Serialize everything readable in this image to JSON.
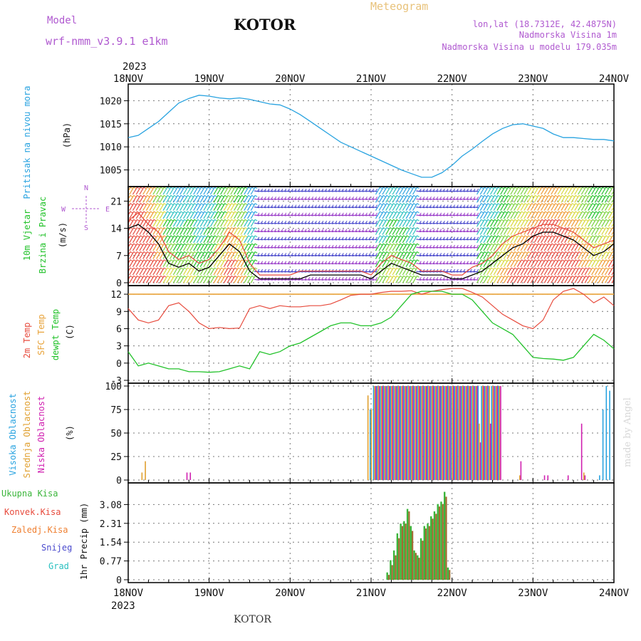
{
  "header": {
    "model_label": "Model",
    "model_name": "wrf-nmm_v3.9.1 e1km",
    "station": "KOTOR",
    "title": "Meteogram",
    "lonlat": "lon,lat (18.7312E, 42.4875N)",
    "altitude": "Nadmorska Visina 1m",
    "model_altitude": "Nadmorska Visina u modelu 179.035m"
  },
  "footer": {
    "station": "KOTOR",
    "credit": "made by Angel"
  },
  "x_axis": {
    "year": "2023",
    "ticks": [
      "18NOV",
      "19NOV",
      "20NOV",
      "21NOV",
      "22NOV",
      "23NOV",
      "24NOV"
    ],
    "range": [
      0,
      144
    ]
  },
  "colors": {
    "pressure": "#29a3e0",
    "temp_2m": "#e74a3c",
    "sfc_temp": "#e8a33a",
    "dewpoint": "#22c22a",
    "wind_purple": "#9a3ec9",
    "wind_speed": "#000000",
    "wind_gust": "#e74a3c",
    "cloud_high": "#29a3e0",
    "cloud_mid": "#e0a030",
    "cloud_low": "#d020b0",
    "precip_total": "#3ab53a",
    "precip_conv": "#e74a3c",
    "precip_strat": "#ef7f30",
    "snow": "#4a4acd",
    "graupel": "#2ac0c0",
    "label_magenta": "#b05ad0",
    "label_orange": "#e8c27a"
  },
  "chart_data": [
    {
      "type": "line",
      "panel": "pressure",
      "ylabel_main": "Pritisak na nivou mora",
      "ylabel_unit": "(hPa)",
      "ylim": [
        1002,
        1023
      ],
      "yticks": [
        "1005",
        "1010",
        "1015",
        "1020"
      ],
      "ytick_values": [
        1005,
        1010,
        1015,
        1020
      ],
      "x": [
        0,
        3,
        6,
        9,
        12,
        15,
        18,
        21,
        24,
        27,
        30,
        33,
        36,
        39,
        42,
        45,
        48,
        51,
        54,
        57,
        60,
        63,
        66,
        69,
        72,
        75,
        78,
        81,
        84,
        87,
        90,
        93,
        96,
        99,
        102,
        105,
        108,
        111,
        114,
        117,
        120,
        123,
        126,
        129,
        132,
        135,
        138,
        141,
        144
      ],
      "series": [
        {
          "values": [
            1012,
            1012.5,
            1014,
            1015.5,
            1017.5,
            1019.5,
            1020.5,
            1021.2,
            1021,
            1020.6,
            1020.4,
            1020.6,
            1020.3,
            1019.8,
            1019.3,
            1019.1,
            1018.2,
            1017,
            1015.5,
            1014,
            1012.5,
            1011,
            1010,
            1009,
            1008,
            1007,
            1006,
            1005,
            1004.2,
            1003.4,
            1003.4,
            1004.4,
            1006,
            1008,
            1009.5,
            1011.2,
            1012.8,
            1014,
            1014.8,
            1015,
            1014.5,
            1014,
            1012.8,
            1012,
            1012,
            1011.8,
            1011.6,
            1011.6,
            1011.3
          ]
        }
      ]
    },
    {
      "type": "line",
      "panel": "wind",
      "ylabel_main": "10m Vjetar",
      "ylabel_sub": "Brzina i Pravac",
      "ylabel_unit": "(m/s)",
      "compass": [
        "N",
        "E",
        "S",
        "W"
      ],
      "ylim": [
        0,
        24
      ],
      "yticks": [
        "0",
        "7",
        "14",
        "21"
      ],
      "ytick_values": [
        0,
        7,
        14,
        21
      ],
      "x": [
        0,
        3,
        6,
        9,
        12,
        15,
        18,
        21,
        24,
        27,
        30,
        33,
        36,
        39,
        42,
        45,
        48,
        51,
        54,
        57,
        60,
        63,
        66,
        69,
        72,
        75,
        78,
        81,
        84,
        87,
        90,
        93,
        96,
        99,
        102,
        105,
        108,
        111,
        114,
        117,
        120,
        123,
        126,
        129,
        132,
        135,
        138,
        141,
        144
      ],
      "series": [
        {
          "name": "speed",
          "values": [
            14,
            15,
            13,
            10,
            5,
            4,
            5,
            3,
            4,
            7,
            10,
            8,
            3,
            1,
            1,
            1,
            1,
            1,
            2,
            2,
            2,
            2,
            2,
            2,
            1,
            3,
            5,
            4,
            3,
            2,
            2,
            2,
            1,
            1,
            2,
            3,
            5,
            7,
            9,
            10,
            12,
            13,
            13,
            12,
            11,
            9,
            7,
            8,
            10
          ]
        },
        {
          "name": "gust",
          "values": [
            16,
            18,
            15,
            13,
            8,
            6,
            7,
            5,
            6,
            9,
            13,
            11,
            5,
            2,
            2,
            2,
            2,
            3,
            3,
            3,
            3,
            3,
            3,
            3,
            2,
            5,
            7,
            6,
            5,
            3,
            3,
            3,
            2,
            2,
            4,
            5,
            7,
            10,
            12,
            13,
            14,
            15,
            15,
            14,
            13,
            11,
            9,
            10,
            11
          ]
        }
      ]
    },
    {
      "type": "line",
      "panel": "temperature",
      "ylabel_lines": [
        "2m Temp",
        "SFC Temp",
        "dewpt Temp"
      ],
      "ylabel_unit": "(C)",
      "ylim": [
        -3,
        13
      ],
      "yticks": [
        "-3",
        "0",
        "3",
        "6",
        "9",
        "12"
      ],
      "ytick_values": [
        -3,
        0,
        3,
        6,
        9,
        12
      ],
      "x": [
        0,
        3,
        6,
        9,
        12,
        15,
        18,
        21,
        24,
        27,
        30,
        33,
        36,
        39,
        42,
        45,
        48,
        51,
        54,
        57,
        60,
        63,
        66,
        69,
        72,
        75,
        78,
        81,
        84,
        87,
        90,
        93,
        96,
        99,
        102,
        105,
        108,
        111,
        114,
        117,
        120,
        123,
        126,
        129,
        132,
        135,
        138,
        141,
        144
      ],
      "series": [
        {
          "name": "2m Temp",
          "values": [
            9.5,
            7.5,
            7,
            7.5,
            10,
            10.5,
            9,
            7,
            6,
            6.2,
            6,
            6.1,
            9.5,
            10,
            9.5,
            10,
            9.8,
            9.8,
            10,
            10,
            10.3,
            11,
            11.8,
            12,
            12,
            12.3,
            12.5,
            12.5,
            12.6,
            12,
            12.5,
            12.8,
            13,
            13,
            12.3,
            11.5,
            10,
            8.5,
            7.5,
            6.5,
            6,
            7.5,
            11,
            12.5,
            13,
            12,
            10.5,
            11.5,
            10
          ]
        },
        {
          "name": "SFC Temp",
          "values": [
            12,
            12,
            12,
            12,
            12,
            12,
            12,
            12,
            12,
            12,
            12,
            12,
            12,
            12,
            12,
            12,
            12,
            12,
            12,
            12,
            12,
            12,
            12,
            12,
            12,
            12,
            12,
            12,
            12,
            12,
            12,
            12,
            12,
            12,
            12,
            12,
            12,
            12,
            12,
            12,
            12,
            12,
            12,
            12,
            12,
            12,
            12,
            12,
            12
          ]
        },
        {
          "name": "dewpt Temp",
          "values": [
            2,
            -0.5,
            0,
            -0.5,
            -1,
            -1,
            -1.5,
            -1.5,
            -1.6,
            -1.5,
            -1,
            -0.5,
            -1,
            2,
            1.5,
            2,
            3,
            3.5,
            4.5,
            5.5,
            6.5,
            7,
            7,
            6.5,
            6.5,
            7,
            8,
            10,
            12,
            12.5,
            12.5,
            12.5,
            12,
            12,
            11,
            9,
            7,
            6,
            5,
            3,
            1,
            0.8,
            0.7,
            0.5,
            1,
            3,
            5,
            4,
            2.5
          ]
        }
      ]
    },
    {
      "type": "bar",
      "panel": "cloud",
      "ylabel_lines": [
        "Visoka Oblacnost",
        "Srednja Oblacnost",
        "Niska Oblacnost"
      ],
      "ylabel_unit": "(%)",
      "ylim": [
        0,
        100
      ],
      "yticks": [
        "0",
        "25",
        "50",
        "75",
        "100"
      ],
      "ytick_values": [
        0,
        25,
        50,
        75,
        100
      ],
      "x": [
        4,
        5,
        17,
        18,
        71,
        72,
        73,
        74,
        75,
        76,
        77,
        78,
        79,
        80,
        81,
        82,
        83,
        84,
        85,
        86,
        87,
        88,
        89,
        90,
        91,
        92,
        93,
        94,
        95,
        96,
        97,
        98,
        99,
        100,
        101,
        102,
        103,
        104,
        105,
        106,
        107,
        108,
        109,
        110,
        116,
        123,
        124,
        130,
        134,
        135,
        140,
        141,
        142,
        143
      ],
      "series": [
        {
          "name": "Visoka Oblacnost",
          "values": [
            0,
            0,
            0,
            0,
            0,
            75,
            100,
            100,
            100,
            100,
            100,
            100,
            100,
            100,
            100,
            100,
            100,
            100,
            100,
            100,
            100,
            100,
            100,
            100,
            100,
            100,
            100,
            100,
            100,
            100,
            100,
            100,
            100,
            100,
            100,
            100,
            100,
            100,
            100,
            100,
            100,
            100,
            100,
            100,
            0,
            0,
            0,
            0,
            0,
            0,
            5,
            75,
            100,
            95
          ]
        },
        {
          "name": "Srednja Oblacnost",
          "values": [
            8,
            20,
            0,
            0,
            90,
            75,
            100,
            100,
            100,
            100,
            100,
            100,
            100,
            100,
            100,
            100,
            100,
            100,
            100,
            100,
            100,
            100,
            100,
            100,
            100,
            100,
            100,
            100,
            100,
            100,
            100,
            100,
            100,
            100,
            100,
            100,
            100,
            60,
            100,
            100,
            100,
            100,
            100,
            100,
            5,
            0,
            0,
            0,
            0,
            8,
            0,
            0,
            0,
            0
          ]
        },
        {
          "name": "Niska Oblacnost",
          "values": [
            0,
            0,
            8,
            8,
            0,
            0,
            100,
            100,
            100,
            100,
            100,
            100,
            100,
            100,
            100,
            100,
            100,
            100,
            100,
            100,
            100,
            100,
            100,
            100,
            100,
            100,
            100,
            100,
            100,
            100,
            100,
            100,
            100,
            100,
            100,
            100,
            100,
            40,
            100,
            100,
            60,
            100,
            100,
            100,
            20,
            5,
            5,
            5,
            60,
            5,
            0,
            0,
            0,
            0
          ]
        }
      ]
    },
    {
      "type": "bar",
      "panel": "precip",
      "legend": [
        "Ukupna Kisa",
        "Konvek.Kisa",
        "Zaledj.Kisa",
        "Snijeg",
        "Grad"
      ],
      "ylabel_main": "1hr Precip",
      "ylabel_unit": "(mm)",
      "ylim": [
        0,
        3.85
      ],
      "yticks": [
        "0",
        "0.77",
        "1.54",
        "2.31",
        "3.08"
      ],
      "ytick_values": [
        0,
        0.77,
        1.54,
        2.31,
        3.08
      ],
      "x": [
        77,
        78,
        79,
        80,
        81,
        82,
        83,
        84,
        85,
        86,
        87,
        88,
        89,
        90,
        91,
        92,
        93,
        94,
        95,
        96,
        97,
        98,
        99
      ],
      "series": [
        {
          "name": "Ukupna Kisa",
          "values": [
            0.3,
            0.8,
            1.2,
            1.9,
            2.3,
            2.4,
            2.9,
            2.2,
            1.2,
            1.0,
            1.7,
            2.2,
            2.3,
            2.6,
            2.8,
            3.1,
            3.2,
            3.6,
            0.5,
            0,
            0,
            0,
            0
          ]
        },
        {
          "name": "Konvek.Kisa",
          "values": [
            0.2,
            0.6,
            1.0,
            1.7,
            2.2,
            2.3,
            2.8,
            2.0,
            1.1,
            0.9,
            1.6,
            2.1,
            2.2,
            2.5,
            2.7,
            3.0,
            3.1,
            3.4,
            0.4,
            0,
            0,
            0,
            0
          ]
        }
      ]
    }
  ]
}
